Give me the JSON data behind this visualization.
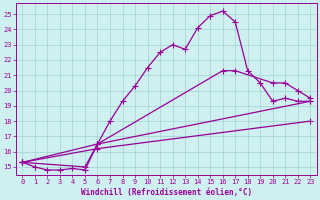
{
  "xlabel": "Windchill (Refroidissement éolien,°C)",
  "bg_color": "#cef0f0",
  "line_color": "#990099",
  "xlim": [
    -0.5,
    23.5
  ],
  "ylim": [
    14.5,
    25.7
  ],
  "yticks": [
    15,
    16,
    17,
    18,
    19,
    20,
    21,
    22,
    23,
    24,
    25
  ],
  "xticks": [
    0,
    1,
    2,
    3,
    4,
    5,
    6,
    7,
    8,
    9,
    10,
    11,
    12,
    13,
    14,
    15,
    16,
    17,
    18,
    19,
    20,
    21,
    22,
    23
  ],
  "line1_x": [
    0,
    1,
    2,
    3,
    4,
    5,
    6,
    7,
    8,
    9,
    10,
    11,
    12,
    13,
    14,
    15,
    16,
    17,
    18,
    19,
    20,
    21,
    22,
    23
  ],
  "line1_y": [
    15.3,
    15.0,
    14.8,
    14.8,
    14.9,
    14.8,
    16.5,
    18.0,
    19.3,
    20.3,
    21.5,
    22.5,
    23.0,
    22.7,
    24.1,
    24.9,
    25.2,
    24.5,
    21.3,
    20.5,
    19.3,
    19.5,
    19.3,
    19.3
  ],
  "line2_x": [
    0,
    5,
    6,
    16,
    17,
    20,
    21,
    22,
    23
  ],
  "line2_y": [
    15.3,
    15.0,
    16.5,
    21.3,
    21.3,
    20.5,
    20.5,
    20.0,
    19.5
  ],
  "line3_x": [
    0,
    6,
    23
  ],
  "line3_y": [
    15.3,
    16.5,
    19.3
  ],
  "line4_x": [
    0,
    6,
    23
  ],
  "line4_y": [
    15.3,
    16.2,
    18.0
  ],
  "marker": "D",
  "markersize": 2.2,
  "linewidth": 0.9
}
